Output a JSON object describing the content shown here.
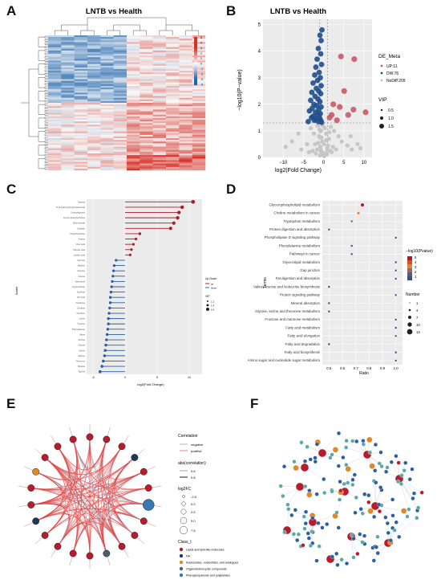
{
  "panel_labels": {
    "A": "A",
    "B": "B",
    "C": "C",
    "D": "D",
    "E": "E",
    "F": "F"
  },
  "panelA": {
    "title": "LNTB vs Health",
    "colorbar_ticks": [
      "5",
      "4",
      "3",
      "2",
      "1",
      "0",
      "-1",
      "-2",
      "-3",
      "-4"
    ],
    "colors": {
      "high": "#d73027",
      "mid": "#f7f7f7",
      "low": "#2166ac"
    }
  },
  "chart_data": [
    {
      "type": "scatter",
      "panel": "B",
      "title": "LNTB vs Health",
      "xlabel": "log2(Fold Change)",
      "ylabel": "−log10(P−value)",
      "xlim": [
        -15,
        12
      ],
      "ylim": [
        0,
        5.2
      ],
      "x_ticks": [
        "−10",
        "−5",
        "0",
        "5",
        "10"
      ],
      "y_ticks": [
        "0",
        "1",
        "2",
        "3",
        "4",
        "5"
      ],
      "legend": {
        "title": "DE_Meta",
        "entries": [
          {
            "label": "UP:11",
            "color": "#c65b69"
          },
          {
            "label": "DW:76",
            "color": "#1f4e8c"
          },
          {
            "label": "NoDiff:209",
            "color": "#bdbdbd"
          }
        ],
        "size_title": "VIP",
        "size_entries": [
          "0.5",
          "1.0",
          "1.5"
        ]
      },
      "threshold_line_y": 1.3,
      "up_points": [
        [
          4.3,
          3.8
        ],
        [
          7.6,
          3.7
        ],
        [
          5.1,
          2.5
        ],
        [
          2.4,
          2.0
        ],
        [
          4.0,
          1.9
        ],
        [
          7.4,
          1.8
        ],
        [
          10.4,
          1.7
        ],
        [
          6.1,
          1.6
        ],
        [
          2.0,
          1.6
        ],
        [
          3.3,
          1.4
        ],
        [
          1.5,
          1.5
        ]
      ],
      "gray_points": [
        [
          -0.2,
          1.2
        ],
        [
          0.3,
          1.1
        ],
        [
          -0.6,
          1.0
        ],
        [
          0.6,
          0.9
        ],
        [
          -1.1,
          0.8
        ],
        [
          1.3,
          0.7
        ],
        [
          -0.3,
          0.6
        ],
        [
          0.1,
          0.5
        ],
        [
          -0.8,
          0.4
        ],
        [
          0.9,
          0.35
        ],
        [
          -1.6,
          0.3
        ],
        [
          1.7,
          0.25
        ],
        [
          -0.4,
          0.2
        ],
        [
          0.4,
          0.15
        ],
        [
          -0.1,
          0.1
        ],
        [
          0.2,
          0.05
        ],
        [
          -1.3,
          0.55
        ],
        [
          1.1,
          0.45
        ],
        [
          -2.1,
          0.5
        ],
        [
          2.3,
          0.4
        ],
        [
          -1.9,
          0.15
        ],
        [
          2.0,
          0.2
        ],
        [
          -0.5,
          0.75
        ],
        [
          0.7,
          0.65
        ],
        [
          -1.0,
          1.05
        ],
        [
          1.4,
          0.95
        ],
        [
          3.1,
          0.3
        ],
        [
          -2.7,
          0.25
        ],
        [
          -6.2,
          0.9
        ],
        [
          -9.4,
          0.4
        ],
        [
          -7.8,
          0.6
        ],
        [
          -3.2,
          1.1
        ],
        [
          4.5,
          0.6
        ],
        [
          5.9,
          0.45
        ],
        [
          7.0,
          0.3
        ],
        [
          8.4,
          0.5
        ],
        [
          9.1,
          0.35
        ],
        [
          3.7,
          0.8
        ],
        [
          -4.1,
          0.5
        ],
        [
          -5.5,
          0.3
        ],
        [
          -2.4,
          0.9
        ],
        [
          2.6,
          1.0
        ],
        [
          -0.9,
          0.08
        ],
        [
          0.8,
          0.12
        ],
        [
          -1.5,
          1.2
        ],
        [
          1.8,
          1.15
        ],
        [
          6.7,
          0.8
        ],
        [
          -3.6,
          0.2
        ],
        [
          -0.7,
          0.3
        ],
        [
          1.0,
          0.25
        ]
      ],
      "down_points": [
        [
          -0.4,
          4.8
        ],
        [
          -0.9,
          4.6
        ],
        [
          -0.6,
          4.4
        ],
        [
          -1.3,
          4.1
        ],
        [
          -0.7,
          3.9
        ],
        [
          -1.6,
          3.7
        ],
        [
          -0.5,
          3.5
        ],
        [
          -1.9,
          3.4
        ],
        [
          -1.1,
          3.2
        ],
        [
          -2.2,
          3.1
        ],
        [
          -0.8,
          3.0
        ],
        [
          -1.5,
          2.9
        ],
        [
          -2.6,
          2.8
        ],
        [
          -0.6,
          2.7
        ],
        [
          -1.8,
          2.6
        ],
        [
          -1.2,
          2.5
        ],
        [
          -2.9,
          2.45
        ],
        [
          -0.7,
          2.4
        ],
        [
          -2.1,
          2.3
        ],
        [
          -1.4,
          2.2
        ],
        [
          -3.2,
          2.15
        ],
        [
          -0.9,
          2.1
        ],
        [
          -2.4,
          2.0
        ],
        [
          -1.7,
          1.95
        ],
        [
          -0.6,
          1.9
        ],
        [
          -2.8,
          1.85
        ],
        [
          -1.2,
          1.8
        ],
        [
          -3.5,
          1.75
        ],
        [
          -2.0,
          1.7
        ],
        [
          -0.8,
          1.65
        ],
        [
          -1.5,
          1.6
        ],
        [
          -2.6,
          1.55
        ],
        [
          -1.0,
          1.5
        ],
        [
          -3.0,
          1.5
        ],
        [
          -1.9,
          1.45
        ],
        [
          -0.7,
          1.4
        ],
        [
          -2.3,
          1.4
        ],
        [
          -1.3,
          1.35
        ],
        [
          -3.8,
          1.35
        ],
        [
          -0.5,
          1.32
        ]
      ]
    },
    {
      "type": "bar",
      "panel": "C",
      "orientation": "horizontal-lollipop",
      "xlabel": "log2(Fold Change)",
      "ylabel": "Name",
      "xlim": [
        -6,
        12
      ],
      "legend": {
        "title": "Up.Down",
        "entries": [
          "up",
          "down"
        ],
        "size_title": "VIP",
        "size_entries": [
          "1.2",
          "1.4",
          "1.6"
        ]
      },
      "colors": {
        "up": "#b2182b",
        "down": "#2b5fa0"
      },
      "categories": [
        "Ethanol",
        "N-(2-hydroxyethyl)icosanamide",
        "1-oleoylglycerol",
        "Glycerophosphocholine",
        "Ethyl acetate",
        "Cyanidin",
        "Phosphocholine",
        "Choline",
        "Oleic acid",
        "Palmitic acid",
        "Linoleic acid",
        "Sucrose",
        "Maltose",
        "Glucose",
        "Inosine",
        "Adenosine",
        "Hypoxanthine",
        "Xanthine",
        "Uric acid",
        "Creatinine",
        "Citrulline",
        "Ornithine",
        "Lysine",
        "Tyrosine",
        "Phenylalanine",
        "Valine",
        "Proline",
        "Glycine",
        "Serine",
        "Alanine",
        "Threonine",
        "Betaine",
        "Taurine"
      ],
      "values": [
        10.6,
        8.9,
        8.4,
        8.2,
        7.6,
        7.1,
        2.3,
        1.7,
        1.3,
        1.0,
        0.8,
        -1.4,
        -1.7,
        -1.8,
        -1.9,
        -2.0,
        -2.1,
        -2.2,
        -2.3,
        -2.3,
        -2.4,
        -2.5,
        -2.6,
        -2.6,
        -2.7,
        -2.8,
        -2.9,
        -3.0,
        -3.1,
        -3.2,
        -3.4,
        -3.6,
        -3.9
      ]
    },
    {
      "type": "scatter",
      "panel": "D",
      "xlabel": "Ratio",
      "ylabel": "Terms",
      "xlim": [
        0.45,
        1.05
      ],
      "x_ticks": [
        "0.5",
        "0.6",
        "0.7",
        "0.8",
        "0.9",
        "1.0"
      ],
      "legend": {
        "color_title": "−log10(Pvalue)",
        "color_ticks": [
          "5",
          "4",
          "3",
          "2",
          "1"
        ],
        "size_title": "Number",
        "size_entries": [
          "1",
          "4",
          "7",
          "10",
          "13"
        ]
      },
      "terms": [
        "Glycerophospholipid metabolism",
        "Choline metabolism in cancer",
        "Tryptophan metabolism",
        "Protein digestion and absorption",
        "Phospholipase D signaling pathway",
        "Phenylalanine metabolism",
        "Pathways in cancer",
        "Glycerolipid metabolism",
        "Gap junction",
        "Fat digestion and absorption",
        "Valine, leucine and isoleucine biosynthesis",
        "Protein signaling pathway",
        "Mineral absorption",
        "Glycine, serine and threonine metabolism",
        "Fructose and mannose metabolism",
        "Fatty acid metabolism",
        "Fatty acid elongation",
        "Fatty acid degradation",
        "Fatty acid biosynthesis",
        "Amino sugar and nucleotide sugar metabolism"
      ],
      "ratios": [
        0.75,
        0.72,
        0.67,
        0.5,
        1.0,
        0.67,
        0.67,
        1.0,
        1.0,
        1.0,
        0.5,
        1.0,
        0.5,
        0.5,
        1.0,
        1.0,
        1.0,
        0.5,
        1.0,
        1.0
      ],
      "pvalues": [
        5.2,
        4.1,
        2.4,
        1.1,
        1.3,
        1.5,
        1.4,
        1.2,
        1.0,
        1.0,
        0.9,
        1.0,
        0.9,
        0.9,
        1.0,
        1.0,
        1.0,
        0.8,
        1.0,
        1.0
      ],
      "numbers": [
        3,
        2,
        1,
        1,
        1,
        1,
        1,
        1,
        1,
        1,
        1,
        1,
        1,
        1,
        1,
        1,
        1,
        1,
        1,
        1
      ]
    }
  ],
  "panelE": {
    "legend_correlation": {
      "title": "Correlation",
      "entries": [
        "negative",
        "positive"
      ]
    },
    "legend_abs": {
      "title": "abs(correlation)",
      "entries": [
        "0.6",
        "0.8"
      ]
    },
    "legend_log2fc": {
      "title": "log2FC",
      "entries": [
        "-2.5",
        "0.0",
        "2.5",
        "5.0",
        "7.5"
      ]
    },
    "legend_class": {
      "title": "Class_I",
      "entries": [
        {
          "label": "Lipids and lipid-like molecules",
          "color": "#b71c2c"
        },
        {
          "label": "NA",
          "color": "#1b3a5c"
        },
        {
          "label": "Nucleosides, nucleotides, and analogues",
          "color": "#e0872a"
        },
        {
          "label": "Organoheterocyclic compounds",
          "color": "#4a5f73"
        },
        {
          "label": "Phenylpropanoids and polyketides",
          "color": "#3c78b0"
        }
      ]
    }
  },
  "panelF": {
    "colors": {
      "metabolite": "#b71c2c",
      "enzyme": "#5aa8a8",
      "gene": "#2b5fa0",
      "pathway": "#e0872a"
    }
  }
}
